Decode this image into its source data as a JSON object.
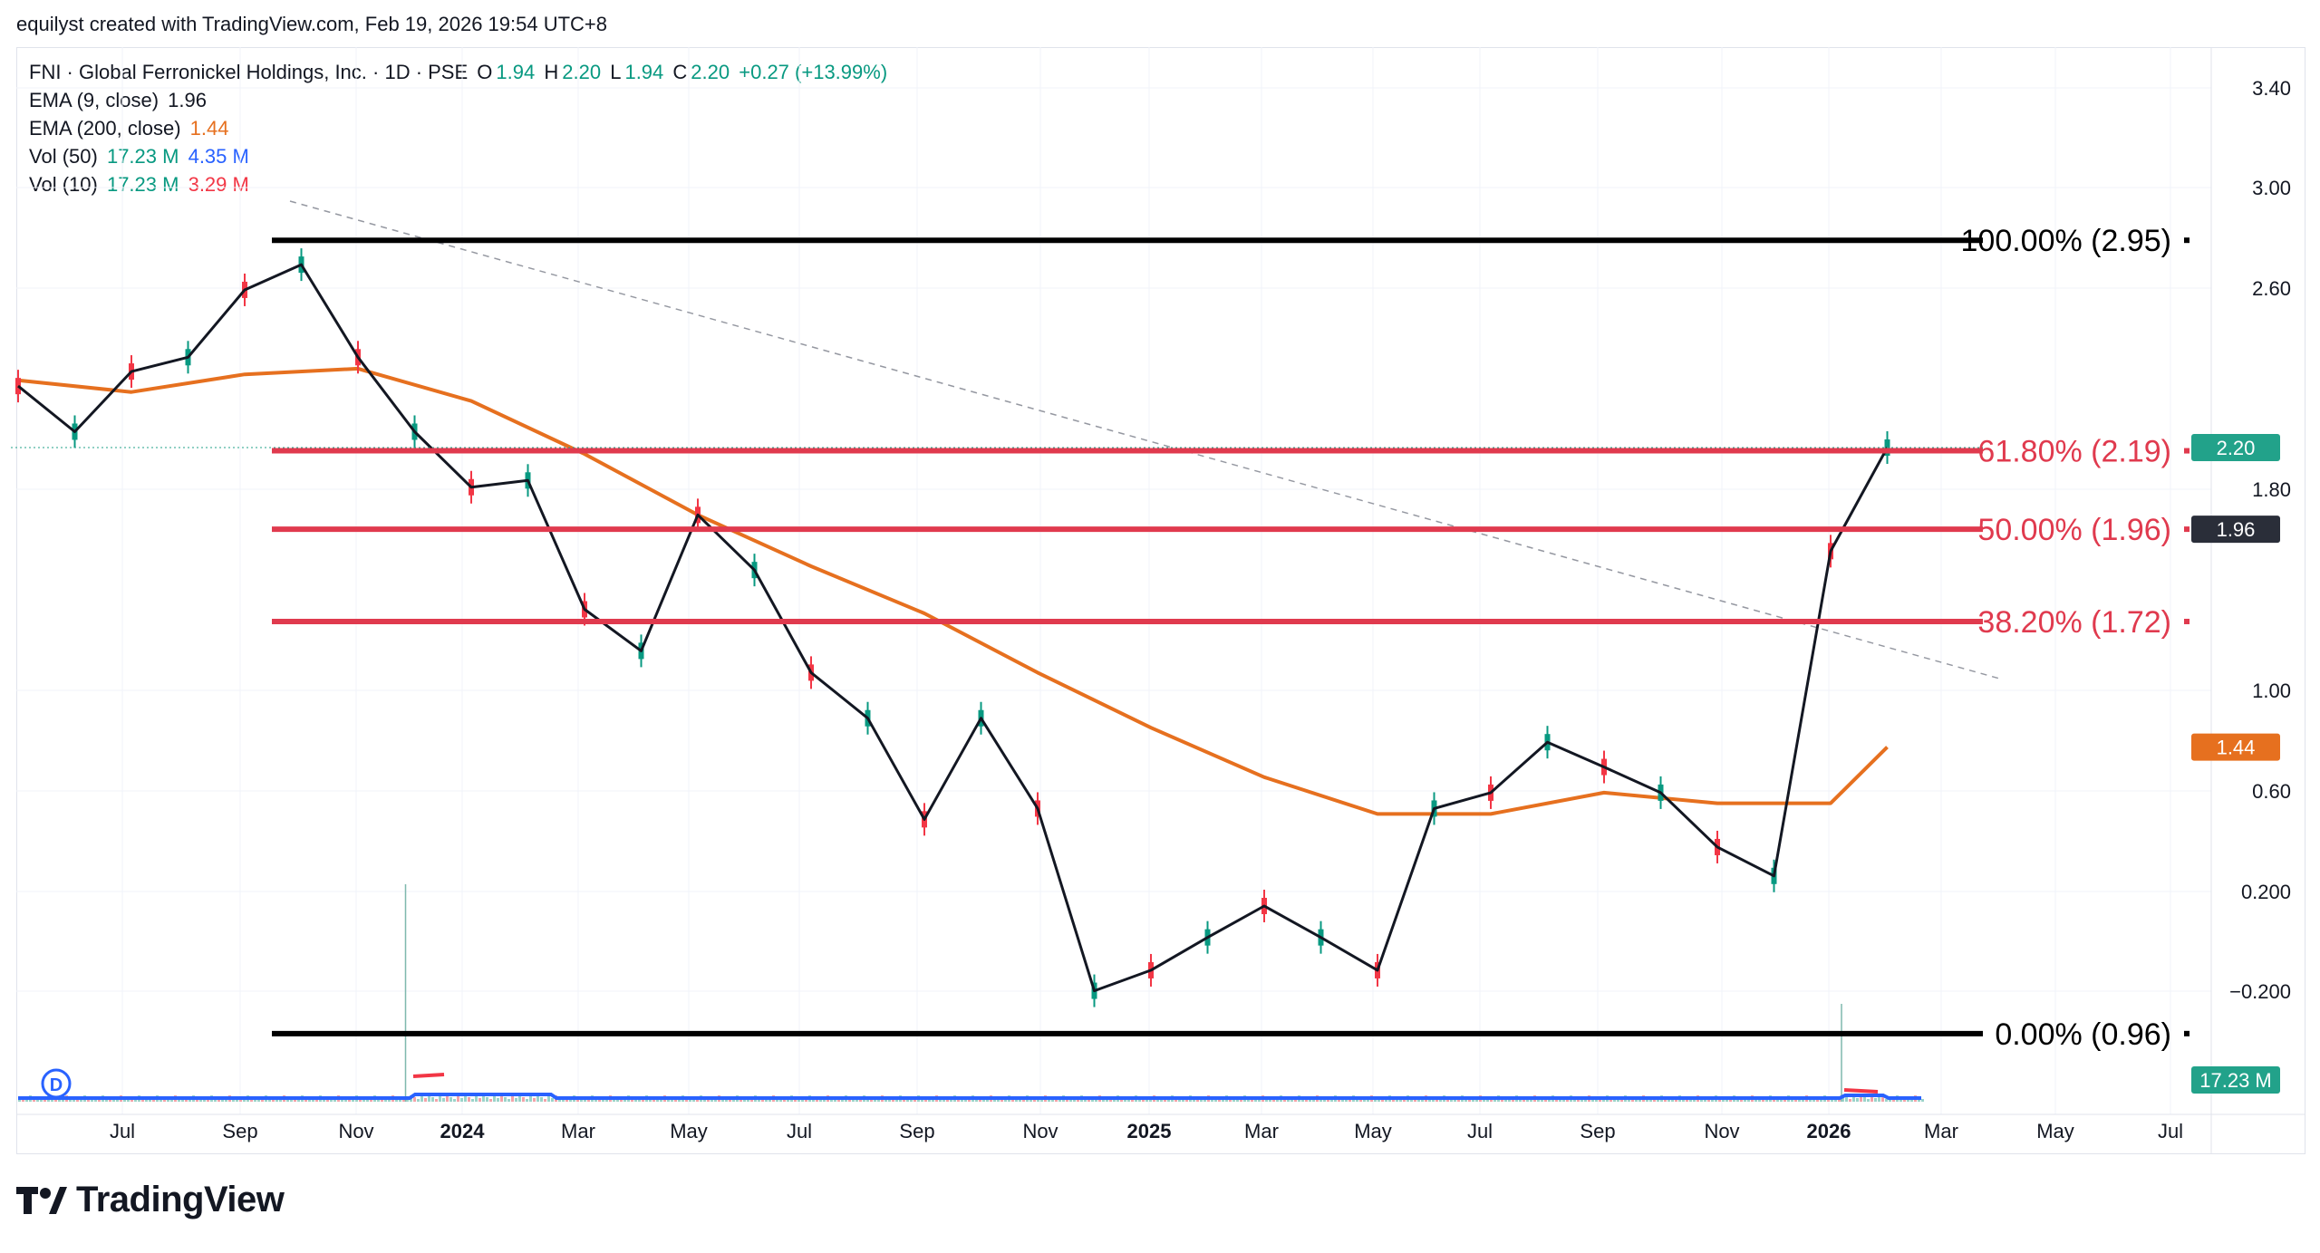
{
  "header": {
    "caption": "equilyst created with TradingView.com, Feb 19, 2026 19:54 UTC+8"
  },
  "legend": {
    "symbol": "FNI · Global Ferronickel Holdings, Inc. · 1D · PSE",
    "ohlc": {
      "o_label": "O",
      "o": "1.94",
      "h_label": "H",
      "h": "2.20",
      "l_label": "L",
      "l": "1.94",
      "c_label": "C",
      "c": "2.20",
      "change": "+0.27 (+13.99%)"
    },
    "ema9": {
      "label": "EMA (9, close)",
      "value": "1.96"
    },
    "ema200": {
      "label": "EMA (200, close)",
      "value": "1.44"
    },
    "vol50": {
      "label": "Vol (50)",
      "v1": "17.23 M",
      "v2": "4.35 M"
    },
    "vol10": {
      "label": "Vol (10)",
      "v1": "17.23 M",
      "v2": "3.29 M"
    }
  },
  "price_badges": {
    "last": "2.20",
    "ema9": "1.96",
    "ema200": "1.44",
    "vol1": "17.23 M",
    "vol2": "17.23 M"
  },
  "logo": {
    "text": "TradingView",
    "mark": "17"
  },
  "colors": {
    "up": "#089981",
    "down": "#f23645",
    "ema9": "#131722",
    "ema200": "#e6701f",
    "fib_red": "#e03a4e",
    "fib_black": "#000000",
    "vol_ma": "#2962ff"
  },
  "chart_data": {
    "type": "line",
    "scale": "log",
    "y_ticks": [
      "3.40",
      "3.00",
      "2.60",
      "1.80",
      "1.00",
      "0.60",
      "0.200",
      "−0.200"
    ],
    "x_ticks": [
      "Jul",
      "Sep",
      "Nov",
      "2024",
      "Mar",
      "May",
      "Jul",
      "Sep",
      "Nov",
      "2025",
      "Mar",
      "May",
      "Jul",
      "Sep",
      "Nov",
      "2026",
      "Mar",
      "May",
      "Jul"
    ],
    "fib_levels": [
      {
        "label": "100.00% (2.95)",
        "price": 2.95
      },
      {
        "label": "61.80% (2.19)",
        "price": 2.19
      },
      {
        "label": "50.00% (1.96)",
        "price": 1.96
      },
      {
        "label": "38.20% (1.72)",
        "price": 1.72
      },
      {
        "label": "0.00% (0.96)",
        "price": 0.96
      }
    ],
    "trendline": {
      "from": [
        "2023-09",
        2.95
      ],
      "to": [
        "2026-02",
        1.18
      ]
    },
    "price_series": {
      "name": "FNI",
      "x": [
        "2023-05",
        "2023-06",
        "2023-07",
        "2023-08",
        "2023-09",
        "2023-10",
        "2023-11",
        "2023-12",
        "2024-01",
        "2024-02",
        "2024-03",
        "2024-04",
        "2024-05",
        "2024-06",
        "2024-07",
        "2024-08",
        "2024-09",
        "2024-10",
        "2024-11",
        "2024-12",
        "2025-01",
        "2025-02",
        "2025-03",
        "2025-04",
        "2025-05",
        "2025-06",
        "2025-07",
        "2025-08",
        "2025-09",
        "2025-10",
        "2025-11",
        "2025-12",
        "2026-01",
        "2026-02"
      ],
      "values": [
        2.4,
        2.25,
        2.45,
        2.5,
        2.75,
        2.85,
        2.5,
        2.25,
        2.08,
        2.1,
        1.75,
        1.65,
        2.0,
        1.85,
        1.6,
        1.5,
        1.3,
        1.5,
        1.32,
        1.02,
        1.05,
        1.1,
        1.15,
        1.1,
        1.05,
        1.32,
        1.35,
        1.45,
        1.4,
        1.35,
        1.25,
        1.2,
        1.9,
        2.2
      ]
    },
    "ema200_series": {
      "name": "EMA (200, close)",
      "x": [
        "2023-05",
        "2023-07",
        "2023-09",
        "2023-11",
        "2024-01",
        "2024-03",
        "2024-05",
        "2024-07",
        "2024-09",
        "2024-11",
        "2025-01",
        "2025-03",
        "2025-05",
        "2025-07",
        "2025-09",
        "2025-11",
        "2026-01",
        "2026-02"
      ],
      "values": [
        2.42,
        2.38,
        2.44,
        2.46,
        2.35,
        2.18,
        2.0,
        1.86,
        1.74,
        1.6,
        1.48,
        1.38,
        1.31,
        1.31,
        1.35,
        1.33,
        1.33,
        1.44
      ]
    },
    "volume_note": {
      "spikes": [
        [
          "2023-12",
          40
        ],
        [
          "2026-01",
          18
        ]
      ]
    }
  }
}
